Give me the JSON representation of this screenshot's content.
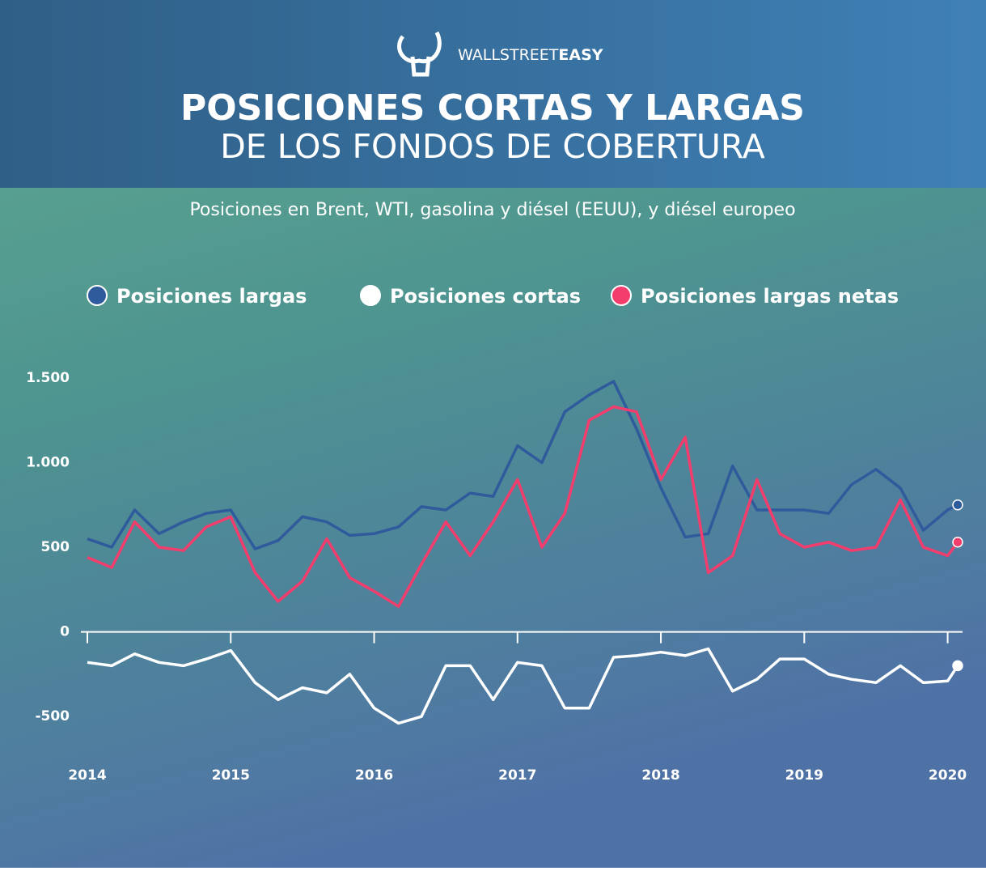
{
  "header": {
    "brand": [
      "WALLSTREET",
      "EASY"
    ],
    "title": [
      "POSICIONES CORTAS Y LARGAS",
      "DE LOS FONDOS DE COBERTURA"
    ]
  },
  "chart_data": {
    "type": "line",
    "subtitle": "Posiciones en Brent, WTI, gasolina y diésel (EEUU), y diésel europeo",
    "x": [
      2014,
      2014.17,
      2014.33,
      2014.5,
      2014.67,
      2014.83,
      2015,
      2015.17,
      2015.33,
      2015.5,
      2015.67,
      2015.83,
      2016,
      2016.17,
      2016.33,
      2016.5,
      2016.67,
      2016.83,
      2017,
      2017.17,
      2017.33,
      2017.5,
      2017.67,
      2017.83,
      2018,
      2018.17,
      2018.33,
      2018.5,
      2018.67,
      2018.83,
      2019,
      2019.17,
      2019.33,
      2019.5,
      2019.67,
      2019.83,
      2020,
      2020.07
    ],
    "series": [
      {
        "name": "Posiciones largas",
        "color": "#2f5b9c",
        "values": [
          550,
          500,
          720,
          580,
          650,
          700,
          720,
          490,
          540,
          680,
          650,
          570,
          580,
          620,
          740,
          720,
          820,
          800,
          1100,
          1000,
          1300,
          1400,
          1480,
          1200,
          850,
          560,
          580,
          980,
          720,
          720,
          720,
          700,
          870,
          960,
          850,
          600,
          720,
          750
        ]
      },
      {
        "name": "Posiciones cortas",
        "color": "#ffffff",
        "values": [
          -180,
          -200,
          -130,
          -180,
          -200,
          -160,
          -110,
          -300,
          -400,
          -330,
          -360,
          -250,
          -450,
          -540,
          -500,
          -200,
          -200,
          -400,
          -180,
          -200,
          -450,
          -450,
          -150,
          -140,
          -120,
          -140,
          -100,
          -350,
          -280,
          -160,
          -160,
          -250,
          -280,
          -300,
          -200,
          -300,
          -290,
          -200
        ]
      },
      {
        "name": "Posiciones largas netas",
        "color": "#f23d6d",
        "values": [
          440,
          380,
          650,
          500,
          480,
          620,
          680,
          350,
          180,
          300,
          550,
          320,
          240,
          150,
          400,
          650,
          450,
          650,
          900,
          500,
          700,
          1250,
          1330,
          1300,
          900,
          1150,
          350,
          450,
          900,
          580,
          500,
          530,
          480,
          500,
          780,
          500,
          450,
          530
        ]
      }
    ],
    "xlim": [
      2014,
      2020.07
    ],
    "xticks": [
      2014,
      2015,
      2016,
      2017,
      2018,
      2019,
      2020
    ],
    "ylim": [
      -700,
      1600
    ],
    "yticks": [
      {
        "value": 1500,
        "label": "1.500"
      },
      {
        "value": 1000,
        "label": "1.000"
      },
      500,
      0,
      -500
    ],
    "grid": false
  }
}
